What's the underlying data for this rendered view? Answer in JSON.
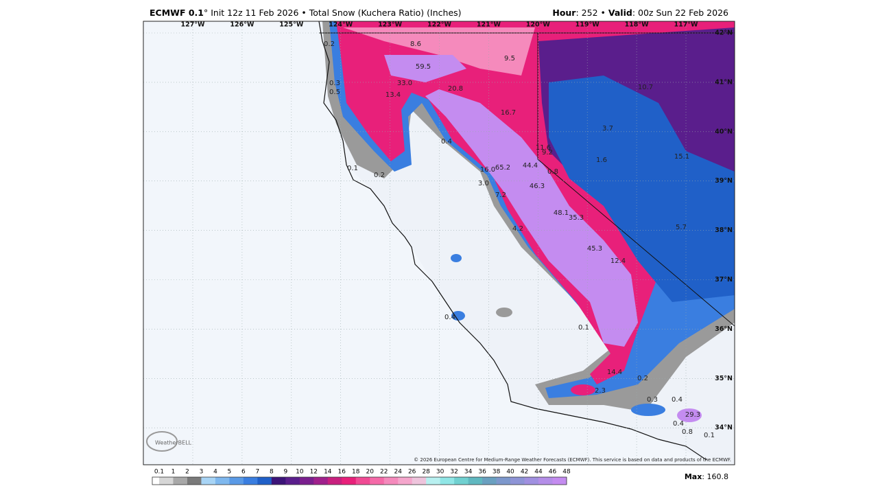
{
  "header": {
    "title_bold": "ECMWF 0.1",
    "title_rest": "° Init 12z 11 Feb 2026 • Total Snow (Kuchera Ratio) (Inches)",
    "hour_label": "Hour",
    "hour_value": ": 252 • ",
    "valid_label": "Valid",
    "valid_value": ": 00z Sun 22 Feb 2026"
  },
  "map": {
    "longitudes": [
      "127°W",
      "126°W",
      "125°W",
      "124°W",
      "123°W",
      "122°W",
      "121°W",
      "120°W",
      "119°W",
      "118°W",
      "117°W"
    ],
    "latitudes": [
      "42°N",
      "41°N",
      "40°N",
      "39°N",
      "38°N",
      "37°N",
      "36°N",
      "35°N",
      "34°N"
    ],
    "point_values": [
      "0.2",
      "8.6",
      "59.5",
      "9.5",
      "0.3",
      "0.5",
      "33.0",
      "13.4",
      "20.8",
      "10.7",
      "16.7",
      "3.7",
      "0.4",
      "11.6",
      "9.2",
      "15.1",
      "1.6",
      "0.1",
      "16.0",
      "65.2",
      "44.4",
      "0.8",
      "0.2",
      "3.0",
      "46.3",
      "7.2",
      "48.1",
      "35.3",
      "5.7",
      "4.2",
      "45.3",
      "12.4",
      "0.4",
      "0.1",
      "14.4",
      "0.2",
      "2.3",
      "0.3",
      "0.4",
      "29.3",
      "0.4",
      "0.8",
      "0.1"
    ],
    "logo": "WeatherBELL",
    "copyright": "© 2026 European Centre for Medium-Range Weather Forecasts (ECMWF). This service is based on data and products of the ECMWF."
  },
  "colorbar": {
    "ticks": [
      0.1,
      1,
      2,
      3,
      4,
      5,
      6,
      7,
      8,
      9,
      10,
      12,
      14,
      16,
      18,
      20,
      22,
      24,
      26,
      28,
      30,
      32,
      34,
      36,
      38,
      40,
      42,
      44,
      46,
      48
    ],
    "colors": [
      "#d6d6d6",
      "#a8a8a8",
      "#7a7a7a",
      "#a8d4f5",
      "#7fb8ee",
      "#5a9ae6",
      "#3a7ee0",
      "#2060c8",
      "#3c1478",
      "#5a1e8c",
      "#7a1f8e",
      "#a0208c",
      "#c8207e",
      "#e8207a",
      "#f04a94",
      "#f56aa8",
      "#f58abc",
      "#f5a6cc",
      "#eec4dc",
      "#b8f0f0",
      "#90e6e6",
      "#70d0d0",
      "#60b8c0",
      "#6aa0c0",
      "#7d98cc",
      "#8e94d6",
      "#a090e0",
      "#b48ee8",
      "#c48cf0"
    ]
  },
  "max_label": "Max",
  "max_value": ": 160.8"
}
